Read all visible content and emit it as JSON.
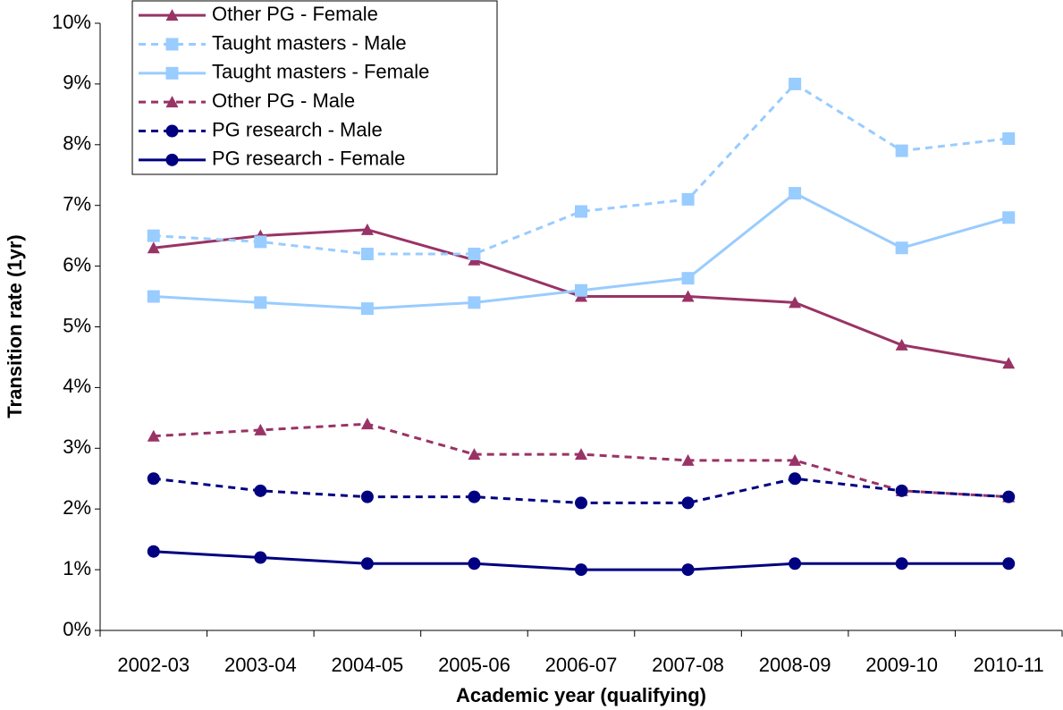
{
  "chart_data": {
    "type": "line",
    "x_label": "Academic year (qualifying)",
    "y_label": "Transition rate (1yr)",
    "categories": [
      "2002-03",
      "2003-04",
      "2004-05",
      "2005-06",
      "2006-07",
      "2007-08",
      "2008-09",
      "2009-10",
      "2010-11"
    ],
    "ylim": [
      0,
      10
    ],
    "yticks": [
      {
        "value": 0,
        "label": "0%"
      },
      {
        "value": 1,
        "label": "1%"
      },
      {
        "value": 2,
        "label": "2%"
      },
      {
        "value": 3,
        "label": "3%"
      },
      {
        "value": 4,
        "label": "4%"
      },
      {
        "value": 5,
        "label": "5%"
      },
      {
        "value": 6,
        "label": "6%"
      },
      {
        "value": 7,
        "label": "7%"
      },
      {
        "value": 8,
        "label": "8%"
      },
      {
        "value": 9,
        "label": "9%"
      },
      {
        "value": 10,
        "label": "10%"
      }
    ],
    "grid": false,
    "legend": "top-left",
    "series": [
      {
        "name": "Other PG - Female",
        "color": "#993366",
        "marker": "triangle",
        "dashed": false,
        "values": [
          6.3,
          6.5,
          6.6,
          6.1,
          5.5,
          5.5,
          5.4,
          4.7,
          4.4
        ]
      },
      {
        "name": "Taught masters - Male",
        "color": "#99ccff",
        "marker": "square",
        "dashed": true,
        "values": [
          6.5,
          6.4,
          6.2,
          6.2,
          6.9,
          7.1,
          9.0,
          7.9,
          8.1
        ]
      },
      {
        "name": "Taught masters - Female",
        "color": "#99ccff",
        "marker": "square",
        "dashed": false,
        "values": [
          5.5,
          5.4,
          5.3,
          5.4,
          5.6,
          5.8,
          7.2,
          6.3,
          6.8
        ]
      },
      {
        "name": "Other PG - Male",
        "color": "#993366",
        "marker": "triangle",
        "dashed": true,
        "values": [
          3.2,
          3.3,
          3.4,
          2.9,
          2.9,
          2.8,
          2.8,
          2.3,
          2.2
        ]
      },
      {
        "name": "PG research - Male",
        "color": "#000080",
        "marker": "circle",
        "dashed": true,
        "values": [
          2.5,
          2.3,
          2.2,
          2.2,
          2.1,
          2.1,
          2.5,
          2.3,
          2.2
        ]
      },
      {
        "name": "PG research - Female",
        "color": "#000080",
        "marker": "circle",
        "dashed": false,
        "values": [
          1.3,
          1.2,
          1.1,
          1.1,
          1.0,
          1.0,
          1.1,
          1.1,
          1.1
        ]
      }
    ]
  }
}
